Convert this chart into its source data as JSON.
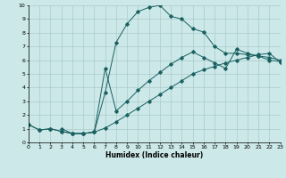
{
  "xlabel": "Humidex (Indice chaleur)",
  "xlim": [
    0,
    23
  ],
  "ylim": [
    0,
    10
  ],
  "xticks": [
    0,
    1,
    2,
    3,
    4,
    5,
    6,
    7,
    8,
    9,
    10,
    11,
    12,
    13,
    14,
    15,
    16,
    17,
    18,
    19,
    20,
    21,
    22,
    23
  ],
  "yticks": [
    0,
    1,
    2,
    3,
    4,
    5,
    6,
    7,
    8,
    9,
    10
  ],
  "bg_color": "#cce8e8",
  "grid_color": "#aacccc",
  "line_color": "#1a6060",
  "figsize": [
    3.2,
    2.0
  ],
  "dpi": 100,
  "s1x": [
    0,
    1,
    2,
    3,
    4,
    5,
    6,
    7,
    8,
    9,
    10,
    11,
    12,
    13,
    14,
    15,
    16,
    17,
    18,
    19,
    20,
    21,
    22,
    23
  ],
  "s1y": [
    1.3,
    0.9,
    1.0,
    0.8,
    0.65,
    0.65,
    0.75,
    3.65,
    7.3,
    8.65,
    9.55,
    9.85,
    10.0,
    9.2,
    9.0,
    8.3,
    8.05,
    7.0,
    6.5,
    6.5,
    6.4,
    6.3,
    6.0,
    5.9
  ],
  "s2x": [
    3,
    4,
    5,
    6,
    7,
    8,
    9,
    10,
    11,
    12,
    13,
    14,
    15,
    16,
    17,
    18,
    19,
    20,
    21,
    22,
    23
  ],
  "s2y": [
    1.0,
    0.65,
    0.65,
    0.75,
    5.4,
    2.3,
    3.0,
    3.8,
    4.5,
    5.1,
    5.7,
    6.2,
    6.6,
    6.2,
    5.8,
    5.4,
    6.8,
    6.5,
    6.3,
    6.2,
    6.0
  ],
  "s3x": [
    0,
    1,
    2,
    3,
    4,
    5,
    6,
    7,
    8,
    9,
    10,
    11,
    12,
    13,
    14,
    15,
    16,
    17,
    18,
    19,
    20,
    21,
    22,
    23
  ],
  "s3y": [
    1.3,
    0.9,
    1.0,
    0.8,
    0.65,
    0.65,
    0.75,
    1.05,
    1.5,
    2.0,
    2.5,
    3.0,
    3.5,
    4.0,
    4.5,
    5.0,
    5.3,
    5.55,
    5.8,
    6.0,
    6.2,
    6.4,
    6.5,
    5.85
  ]
}
